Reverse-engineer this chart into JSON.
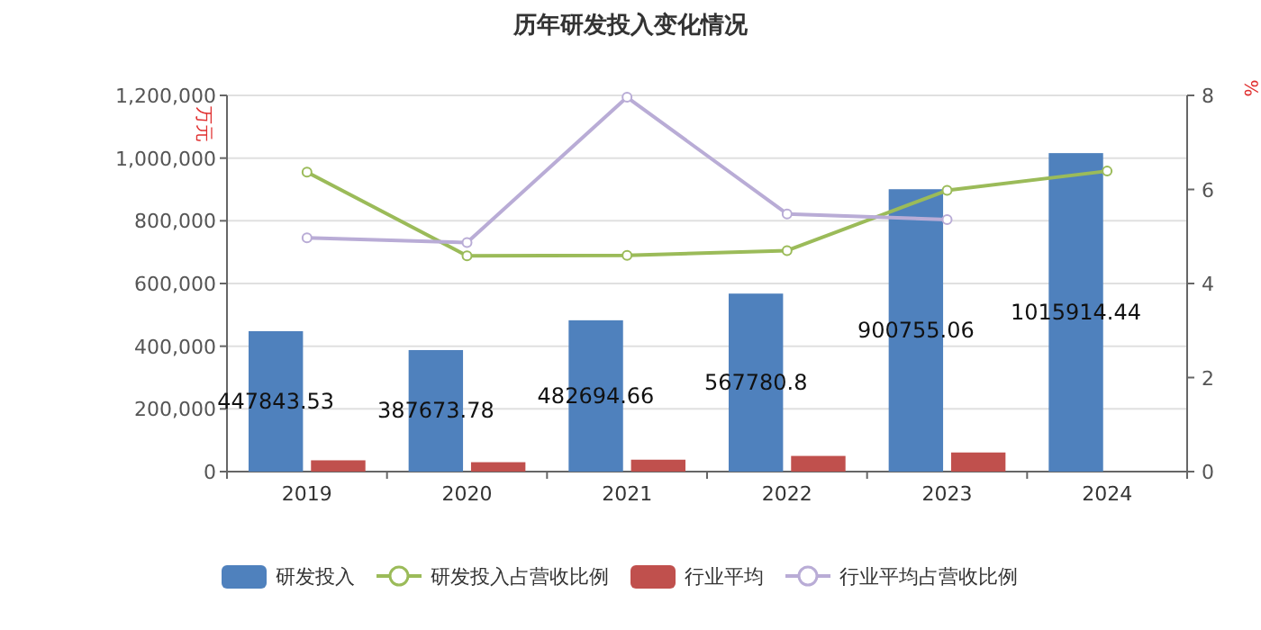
{
  "chart_data": {
    "type": "bar",
    "title": "历年研发投入变化情况",
    "ylabel": "万元",
    "y2label": "%",
    "categories": [
      "2019",
      "2020",
      "2021",
      "2022",
      "2023",
      "2024"
    ],
    "series": [
      {
        "name": "研发投入",
        "color": "#4f81bd",
        "values": [
          447843.53,
          387673.78,
          482694.66,
          567780.8,
          900755.06,
          1015914.44
        ],
        "value_labels": [
          "447843.53",
          "387673.78",
          "482694.66",
          "567780.8",
          "900755.06",
          "1015914.44"
        ]
      },
      {
        "name": "研发投入占营收比例",
        "type": "line",
        "axis": "y2",
        "color": "#9bbb59",
        "marker": "circle",
        "values": [
          6.37,
          4.59,
          4.6,
          4.7,
          5.98,
          6.39
        ]
      },
      {
        "name": "行业平均",
        "color": "#c0504d",
        "values": [
          36000,
          30000,
          38000,
          50000,
          61000,
          null
        ]
      },
      {
        "name": "行业平均占营收比例",
        "type": "line",
        "axis": "y2",
        "color": "#b9acd6",
        "marker": "circle",
        "values": [
          4.97,
          4.87,
          7.96,
          5.48,
          5.36,
          null
        ]
      }
    ],
    "ylim": [
      0,
      1200000
    ],
    "yticks": [
      {
        "value": 0,
        "label": "0"
      },
      {
        "value": 200000,
        "label": "200,000"
      },
      {
        "value": 400000,
        "label": "400,000"
      },
      {
        "value": 600000,
        "label": "600,000"
      },
      {
        "value": 800000,
        "label": "800,000"
      },
      {
        "value": 1000000,
        "label": "1,000,000"
      },
      {
        "value": 1200000,
        "label": "1,200,000"
      }
    ],
    "y2lim": [
      0,
      8
    ],
    "y2ticks": [
      0,
      2,
      4,
      6,
      8
    ],
    "grid": "y",
    "legend": "bottom"
  }
}
